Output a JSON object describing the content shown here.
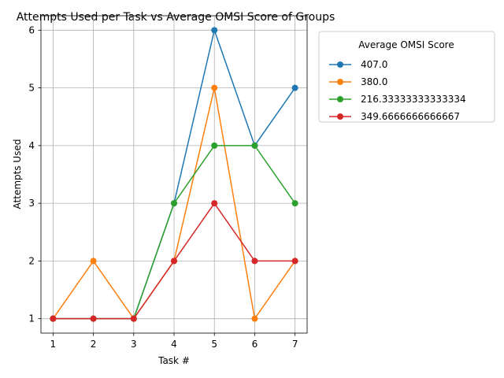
{
  "chart_data": {
    "type": "line",
    "title": "Attempts Used per Task vs Average OMSI Score of Groups",
    "xlabel": "Task #",
    "ylabel": "Attempts Used",
    "x": [
      1,
      2,
      3,
      4,
      5,
      6,
      7
    ],
    "xlim": [
      0.7,
      7.3
    ],
    "ylim": [
      0.75,
      6.25
    ],
    "xticks": [
      1,
      2,
      3,
      4,
      5,
      6,
      7
    ],
    "yticks": [
      1,
      2,
      3,
      4,
      5,
      6
    ],
    "grid": true,
    "legend": {
      "title": "Average OMSI Score",
      "placement": "outside-top-right"
    },
    "series": [
      {
        "name": "407.0",
        "color": "#1f77b4",
        "values": [
          1,
          1,
          1,
          3,
          6,
          4,
          5
        ]
      },
      {
        "name": "380.0",
        "color": "#ff7f0e",
        "values": [
          1,
          2,
          1,
          2,
          5,
          1,
          2
        ]
      },
      {
        "name": "216.33333333333334",
        "color": "#2ca02c",
        "values": [
          1,
          1,
          1,
          3,
          4,
          4,
          3
        ]
      },
      {
        "name": "349.6666666666667",
        "color": "#d62728",
        "values": [
          1,
          1,
          1,
          2,
          3,
          2,
          2
        ]
      }
    ]
  }
}
